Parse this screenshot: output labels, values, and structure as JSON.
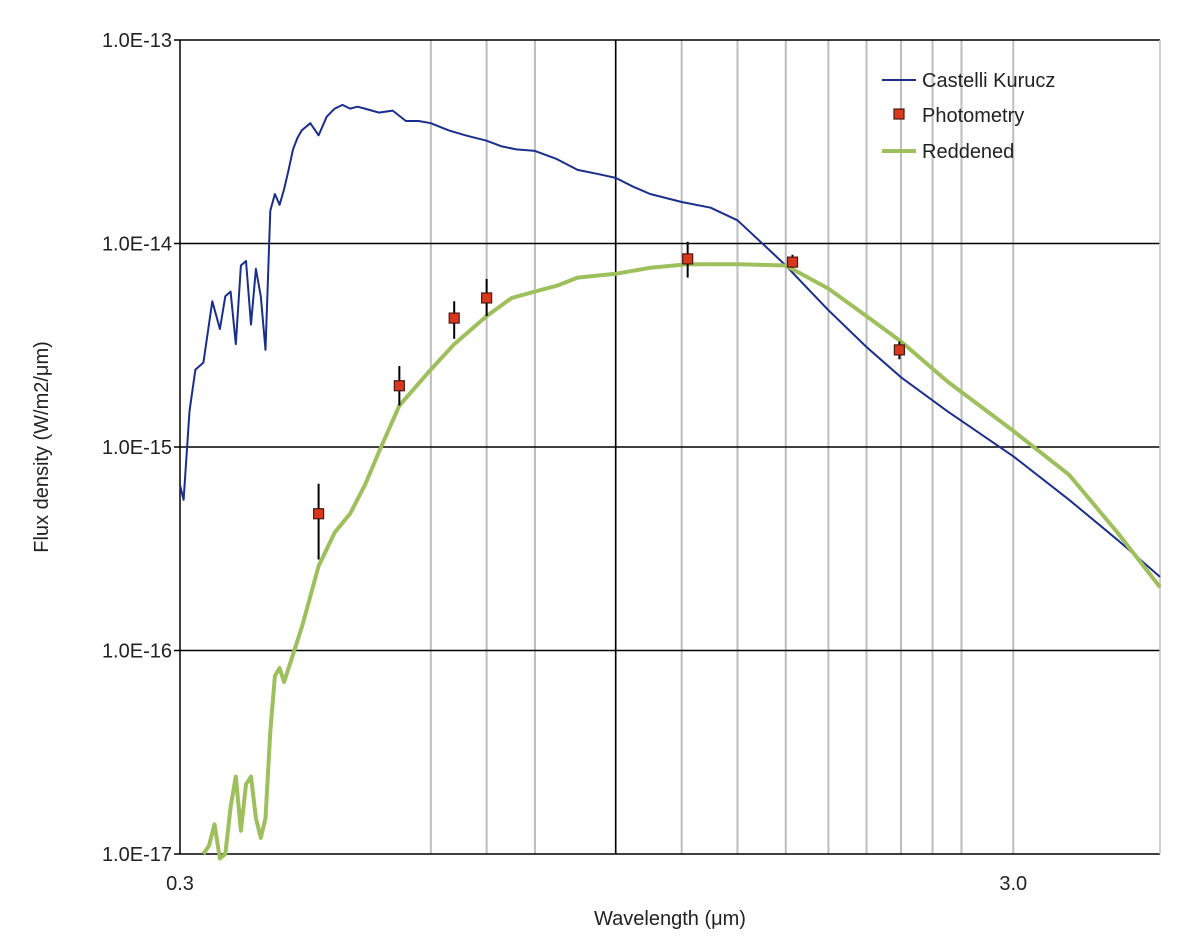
{
  "chart_data": {
    "type": "line",
    "title": "",
    "xlabel": "Wavelength (μm)",
    "ylabel": "Flux density (W/m2/μm)",
    "x_scale": "log",
    "y_scale": "log",
    "xlim": [
      0.3,
      4.5
    ],
    "ylim": [
      1e-17,
      1e-13
    ],
    "x_tick_labels": [
      {
        "value": 0.3,
        "label": "0.3"
      },
      {
        "value": 3.0,
        "label": "3.0"
      }
    ],
    "y_tick_labels": [
      {
        "value": 1e-13,
        "label": "1.0E-13"
      },
      {
        "value": 1e-14,
        "label": "1.0E-14"
      },
      {
        "value": 1e-15,
        "label": "1.0E-15"
      },
      {
        "value": 1e-16,
        "label": "1.0E-16"
      },
      {
        "value": 1e-17,
        "label": "1.0E-17"
      }
    ],
    "x_minor_grid": [
      0.6,
      0.7,
      0.8,
      1.0,
      1.2,
      1.4,
      1.6,
      1.8,
      2.0,
      2.2,
      2.4,
      2.6,
      3.0
    ],
    "x_major_grid": [
      1.0
    ],
    "y_major_grid": [
      1e-14,
      1e-15,
      1e-16
    ],
    "legend_position": "top-right",
    "colors": {
      "kurucz": "#1a2f8c",
      "reddened": "#9dbf5c",
      "photometry_fill": "#d9381e",
      "photometry_edge": "#4a1a10",
      "grid_major": "#000000",
      "grid_minor": "#bdbdbd"
    },
    "series": [
      {
        "name": "Castelli Kurucz",
        "kind": "line",
        "x": [
          0.3,
          0.303,
          0.308,
          0.313,
          0.32,
          0.328,
          0.335,
          0.34,
          0.345,
          0.35,
          0.355,
          0.36,
          0.365,
          0.37,
          0.375,
          0.38,
          0.385,
          0.39,
          0.395,
          0.4,
          0.405,
          0.41,
          0.415,
          0.42,
          0.43,
          0.44,
          0.45,
          0.46,
          0.47,
          0.48,
          0.49,
          0.5,
          0.52,
          0.54,
          0.56,
          0.58,
          0.6,
          0.63,
          0.66,
          0.7,
          0.73,
          0.76,
          0.8,
          0.85,
          0.9,
          0.95,
          1.0,
          1.05,
          1.1,
          1.2,
          1.3,
          1.4,
          1.5,
          1.6,
          1.7,
          1.8,
          2.0,
          2.2,
          2.5,
          3.0,
          3.5,
          4.0,
          4.5
        ],
        "y": [
          6.5e-16,
          5.5e-16,
          1.5e-15,
          2.4e-15,
          2.6e-15,
          5.2e-15,
          3.8e-15,
          5.5e-15,
          5.8e-15,
          3.2e-15,
          7.8e-15,
          8.2e-15,
          4e-15,
          7.5e-15,
          5.5e-15,
          3e-15,
          1.45e-14,
          1.75e-14,
          1.55e-14,
          1.85e-14,
          2.3e-14,
          2.9e-14,
          3.3e-14,
          3.6e-14,
          3.9e-14,
          3.4e-14,
          4.2e-14,
          4.6e-14,
          4.8e-14,
          4.6e-14,
          4.7e-14,
          4.6e-14,
          4.4e-14,
          4.5e-14,
          4e-14,
          4e-14,
          3.9e-14,
          3.6e-14,
          3.4e-14,
          3.2e-14,
          3e-14,
          2.9e-14,
          2.85e-14,
          2.6e-14,
          2.3e-14,
          2.2e-14,
          2.1e-14,
          1.9e-14,
          1.75e-14,
          1.6e-14,
          1.5e-14,
          1.3e-14,
          1e-14,
          7.8e-15,
          6e-15,
          4.7e-15,
          3.1e-15,
          2.2e-15,
          1.5e-15,
          9e-16,
          5.5e-16,
          3.5e-16,
          2.3e-16
        ]
      },
      {
        "name": "Photometry",
        "kind": "points",
        "x": [
          0.44,
          0.55,
          0.64,
          0.7,
          1.22,
          1.63,
          2.19
        ],
        "y": [
          4.7e-16,
          2e-15,
          4.3e-15,
          5.4e-15,
          8.4e-15,
          8.1e-15,
          3e-15
        ],
        "y_low": [
          2.8e-16,
          1.6e-15,
          3.4e-15,
          4.4e-15,
          6.8e-15,
          7.6e-15,
          2.7e-15
        ],
        "y_high": [
          6.6e-16,
          2.5e-15,
          5.2e-15,
          6.7e-15,
          1.02e-14,
          8.8e-15,
          3.3e-15
        ]
      },
      {
        "name": "Reddened",
        "kind": "line",
        "x": [
          0.32,
          0.325,
          0.33,
          0.335,
          0.34,
          0.345,
          0.35,
          0.355,
          0.36,
          0.365,
          0.37,
          0.375,
          0.38,
          0.385,
          0.39,
          0.395,
          0.4,
          0.42,
          0.44,
          0.46,
          0.48,
          0.5,
          0.52,
          0.55,
          0.6,
          0.64,
          0.7,
          0.75,
          0.8,
          0.85,
          0.9,
          1.0,
          1.1,
          1.22,
          1.4,
          1.6,
          1.8,
          2.0,
          2.2,
          2.5,
          3.0,
          3.5,
          4.0,
          4.5
        ],
        "y": [
          1e-17,
          1.1e-17,
          1.4e-17,
          9.5e-18,
          1e-17,
          1.7e-17,
          2.4e-17,
          1.3e-17,
          2.2e-17,
          2.4e-17,
          1.5e-17,
          1.2e-17,
          1.5e-17,
          4e-17,
          7.5e-17,
          8.2e-17,
          7e-17,
          1.3e-16,
          2.6e-16,
          3.8e-16,
          4.7e-16,
          6.5e-16,
          9.5e-16,
          1.6e-15,
          2.4e-15,
          3.2e-15,
          4.4e-15,
          5.4e-15,
          5.8e-15,
          6.2e-15,
          6.8e-15,
          7.1e-15,
          7.6e-15,
          7.9e-15,
          7.9e-15,
          7.8e-15,
          6e-15,
          4.4e-15,
          3.3e-15,
          2.1e-15,
          1.2e-15,
          7.3e-16,
          3.8e-16,
          2.05e-16
        ]
      }
    ]
  }
}
